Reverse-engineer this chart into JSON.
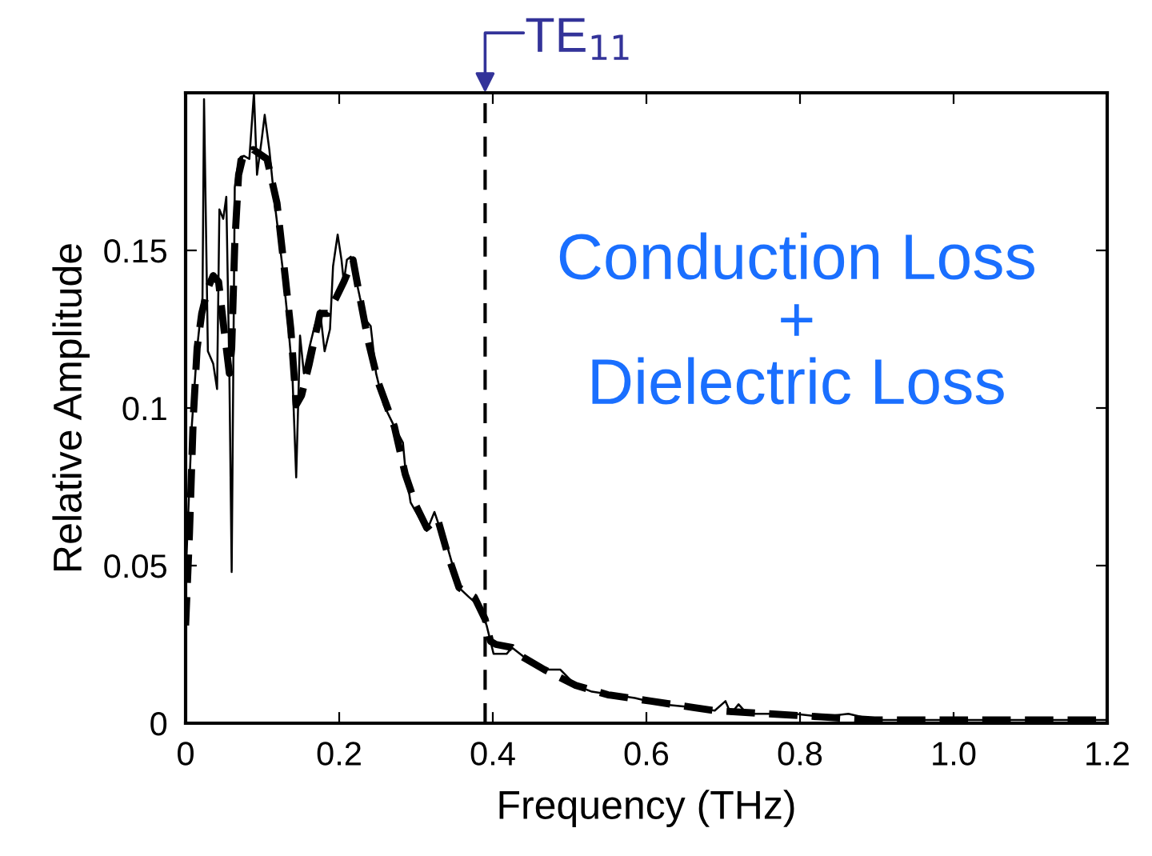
{
  "chart_data": {
    "type": "line",
    "xlabel": "Frequency (THz)",
    "ylabel": "Relative Amplitude",
    "xlim": [
      0,
      1.2
    ],
    "xticks": [
      0,
      0.2,
      0.4,
      0.6,
      0.8,
      {
        "value": 1.0,
        "label": "1.0"
      },
      1.2
    ],
    "ylim": [
      0,
      0.2
    ],
    "yticks": [
      0,
      0.05,
      {
        "value": 0.1,
        "label": "0.1"
      },
      0.15
    ],
    "grid": false,
    "legend": false,
    "series": [
      {
        "color": "#000000",
        "line_style": "solid",
        "x": [
          0,
          0.001,
          0.008,
          0.015,
          0.022,
          0.024,
          0.029,
          0.036,
          0.041,
          0.044,
          0.049,
          0.053,
          0.057,
          0.06,
          0.064,
          0.069,
          0.076,
          0.083,
          0.089,
          0.093,
          0.099,
          0.103,
          0.109,
          0.116,
          0.126,
          0.133,
          0.139,
          0.144,
          0.149,
          0.154,
          0.161,
          0.168,
          0.175,
          0.181,
          0.188,
          0.192,
          0.198,
          0.203,
          0.206,
          0.21,
          0.215,
          0.22,
          0.227,
          0.234,
          0.241,
          0.248,
          0.258,
          0.272,
          0.283,
          0.286,
          0.293,
          0.307,
          0.314,
          0.324,
          0.331,
          0.342,
          0.356,
          0.369,
          0.383,
          0.392,
          0.401,
          0.418,
          0.425,
          0.446,
          0.467,
          0.488,
          0.508,
          0.529,
          0.557,
          0.585,
          0.619,
          0.661,
          0.689,
          0.703,
          0.71,
          0.72,
          0.731,
          0.758,
          0.793,
          0.828,
          0.863,
          0.897,
          0.967,
          1.036,
          1.106,
          1.2
        ],
        "values": [
          0.02,
          0.052,
          0.094,
          0.119,
          0.135,
          0.198,
          0.118,
          0.114,
          0.106,
          0.163,
          0.16,
          0.167,
          0.111,
          0.048,
          0.17,
          0.179,
          0.18,
          0.179,
          0.2,
          0.174,
          0.185,
          0.193,
          0.182,
          0.165,
          0.145,
          0.128,
          0.111,
          0.078,
          0.123,
          0.111,
          0.119,
          0.126,
          0.131,
          0.118,
          0.125,
          0.145,
          0.155,
          0.147,
          0.14,
          0.147,
          0.148,
          0.143,
          0.135,
          0.128,
          0.126,
          0.111,
          0.101,
          0.094,
          0.089,
          0.081,
          0.07,
          0.064,
          0.061,
          0.067,
          0.062,
          0.055,
          0.043,
          0.04,
          0.037,
          0.031,
          0.022,
          0.022,
          0.024,
          0.02,
          0.017,
          0.017,
          0.012,
          0.01,
          0.009,
          0.008,
          0.006,
          0.005,
          0.004,
          0.007,
          0.003,
          0.006,
          0.003,
          0.003,
          0.003,
          0.002,
          0.003,
          0.001,
          0.001,
          0.001,
          0.001,
          0.001
        ]
      },
      {
        "color": "#000000",
        "line_style": "dashed",
        "x": [
          0,
          0.005,
          0.01,
          0.015,
          0.021,
          0.029,
          0.036,
          0.043,
          0.05,
          0.057,
          0.06,
          0.064,
          0.069,
          0.074,
          0.081,
          0.088,
          0.106,
          0.119,
          0.13,
          0.137,
          0.144,
          0.151,
          0.161,
          0.175,
          0.185,
          0.196,
          0.206,
          0.218,
          0.227,
          0.238,
          0.251,
          0.272,
          0.286,
          0.3,
          0.314,
          0.328,
          0.342,
          0.356,
          0.376,
          0.39,
          0.397,
          0.404,
          0.425,
          0.439,
          0.467,
          0.508,
          0.55,
          0.606,
          0.661,
          0.689,
          0.758,
          0.828,
          0.897,
          0.967,
          1.2
        ],
        "values": [
          0.031,
          0.06,
          0.097,
          0.119,
          0.13,
          0.138,
          0.142,
          0.14,
          0.125,
          0.111,
          0.119,
          0.152,
          0.174,
          0.179,
          0.179,
          0.182,
          0.179,
          0.165,
          0.141,
          0.125,
          0.101,
          0.104,
          0.114,
          0.13,
          0.13,
          0.135,
          0.14,
          0.147,
          0.135,
          0.121,
          0.108,
          0.094,
          0.079,
          0.069,
          0.062,
          0.065,
          0.053,
          0.043,
          0.04,
          0.033,
          0.026,
          0.025,
          0.024,
          0.021,
          0.017,
          0.012,
          0.009,
          0.007,
          0.005,
          0.004,
          0.003,
          0.002,
          0.001,
          0.001,
          0.001
        ]
      }
    ],
    "ref_lines": [
      {
        "axis": "x",
        "value": 0.39,
        "label": "TE$_{11}$",
        "color": "#000000",
        "line_style": "dashed"
      }
    ],
    "annotations": [
      "Conduction Loss\n+\nDielectric Loss"
    ]
  }
}
